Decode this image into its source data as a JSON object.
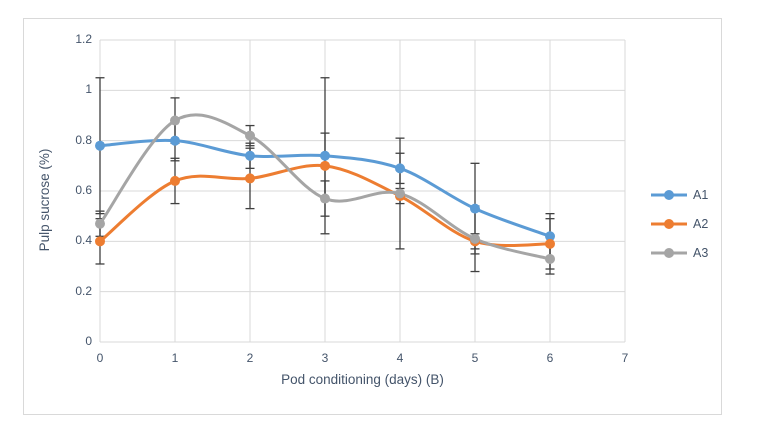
{
  "chart_data": {
    "type": "line",
    "smooth": true,
    "x": [
      0,
      1,
      2,
      3,
      4,
      5,
      6
    ],
    "series": [
      {
        "name": "A1",
        "color": "#5B9BD5",
        "values": [
          0.78,
          0.8,
          0.74,
          0.74,
          0.69,
          0.53,
          0.42
        ],
        "errors": [
          0.27,
          0.08,
          0.05,
          0.31,
          0.06,
          0.18,
          0.09
        ]
      },
      {
        "name": "A2",
        "color": "#ED7D31",
        "values": [
          0.4,
          0.64,
          0.65,
          0.7,
          0.58,
          0.4,
          0.39
        ],
        "errors": [
          0.09,
          0.09,
          0.12,
          0.13,
          0.03,
          0.03,
          0.1
        ]
      },
      {
        "name": "A3",
        "color": "#A5A5A5",
        "values": [
          0.47,
          0.88,
          0.82,
          0.57,
          0.59,
          0.41,
          0.33
        ],
        "errors": [
          0.05,
          0.09,
          0.04,
          0.07,
          0.22,
          0.13,
          0.06
        ]
      }
    ],
    "xlabel": "Pod conditioning (days) (B)",
    "ylabel": "Pulp sucrose (%)",
    "xlim": [
      0,
      7
    ],
    "ylim": [
      0,
      1.2
    ],
    "x_ticks": [
      "0",
      "1",
      "2",
      "3",
      "4",
      "5",
      "6",
      "7"
    ],
    "y_ticks": [
      "0",
      "0.2",
      "0.4",
      "0.6",
      "0.8",
      "1",
      "1.2"
    ],
    "grid": true,
    "legend_position": "right",
    "colors": {
      "gridline": "#D9D9D9",
      "error_bar": "#404040",
      "text": "#44546A",
      "frame_border": "#D9D9D9",
      "background": "#FFFFFF"
    }
  }
}
